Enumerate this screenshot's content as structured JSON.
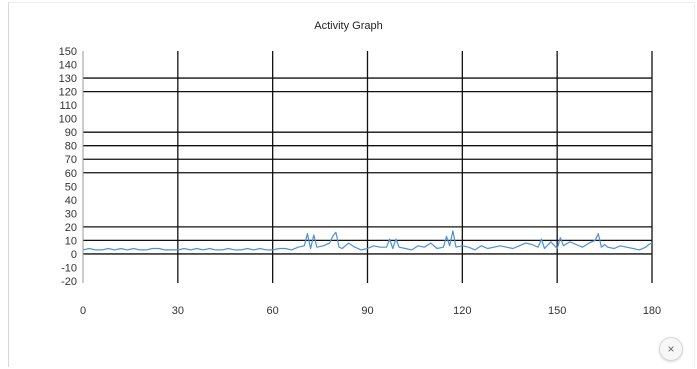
{
  "window": {
    "close_label": "×"
  },
  "chart_data": {
    "type": "line",
    "title": "Activity Graph",
    "xlabel": "",
    "ylabel": "",
    "xlim": [
      0,
      180
    ],
    "ylim": [
      -20,
      150
    ],
    "x_ticks": [
      0,
      30,
      60,
      90,
      120,
      150,
      180
    ],
    "y_ticks": [
      150,
      140,
      130,
      120,
      110,
      100,
      90,
      80,
      70,
      60,
      50,
      40,
      30,
      20,
      10,
      0,
      -10,
      -20
    ],
    "gridlines_y": [
      130,
      120,
      90,
      80,
      70,
      60,
      20,
      10,
      0
    ],
    "gridlines_x": [
      30,
      60,
      90,
      120,
      150,
      180
    ],
    "grid": true,
    "line_color": "#4a90d9",
    "series": [
      {
        "x": [
          0,
          2,
          4,
          6,
          8,
          10,
          12,
          14,
          16,
          18,
          20,
          22,
          24,
          26,
          28,
          30,
          32,
          34,
          36,
          38,
          40,
          42,
          44,
          46,
          48,
          50,
          52,
          54,
          56,
          58,
          60,
          62,
          64,
          66,
          68,
          70,
          71,
          72,
          73,
          74,
          76,
          78,
          79,
          80,
          81,
          82,
          84,
          86,
          88,
          90,
          92,
          94,
          96,
          97,
          98,
          99,
          100,
          102,
          104,
          106,
          108,
          110,
          112,
          114,
          115,
          116,
          117,
          118,
          120,
          122,
          124,
          126,
          128,
          130,
          132,
          134,
          136,
          138,
          140,
          142,
          144,
          145,
          146,
          148,
          150,
          151,
          152,
          154,
          156,
          158,
          160,
          162,
          163,
          164,
          165,
          166,
          168,
          170,
          172,
          174,
          176,
          178,
          179,
          180
        ],
        "y": [
          3,
          4,
          3,
          3,
          4,
          3,
          4,
          3,
          4,
          3,
          3,
          4,
          4,
          3,
          3,
          3,
          4,
          3,
          4,
          3,
          4,
          3,
          3,
          4,
          3,
          3,
          4,
          3,
          4,
          3,
          3,
          4,
          4,
          3,
          5,
          6,
          15,
          4,
          14,
          5,
          6,
          8,
          13,
          16,
          5,
          4,
          8,
          5,
          3,
          4,
          6,
          5,
          5,
          11,
          4,
          11,
          5,
          4,
          3,
          6,
          5,
          8,
          4,
          5,
          13,
          6,
          17,
          5,
          6,
          5,
          3,
          6,
          4,
          5,
          6,
          5,
          4,
          6,
          8,
          7,
          5,
          11,
          4,
          9,
          4,
          12,
          6,
          9,
          7,
          5,
          8,
          10,
          15,
          5,
          7,
          5,
          4,
          6,
          5,
          4,
          3,
          5,
          7,
          8
        ]
      }
    ]
  }
}
